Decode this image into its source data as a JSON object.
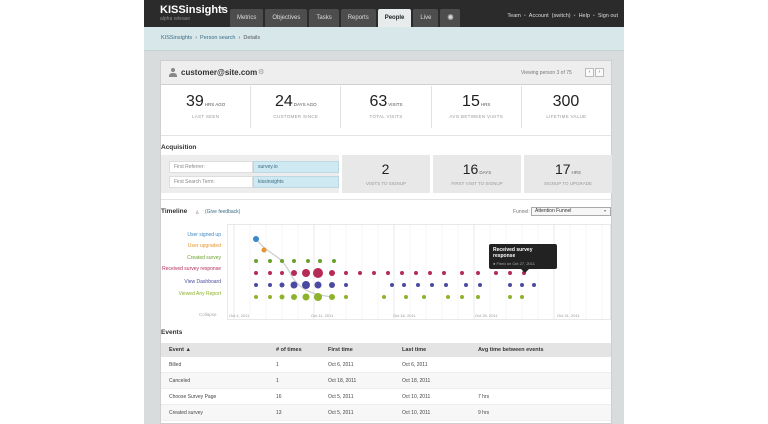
{
  "brand": {
    "name": "KISSinsights",
    "sub": "alpha release"
  },
  "nav": {
    "tabs": [
      "Metrics",
      "Objectives",
      "Tasks",
      "Reports",
      "People",
      "Live"
    ],
    "active": "People",
    "settings_icon": "gear-icon"
  },
  "toplinks": {
    "team": "Team",
    "account": "Account",
    "switch": "(switch)",
    "help": "Help",
    "signout": "Sign out"
  },
  "breadcrumb": {
    "root": "KISSinsights",
    "parent": "Person search",
    "current": "Details"
  },
  "customer": {
    "email": "customer@site.com",
    "viewing": "Viewing person",
    "index": "3",
    "of": "of",
    "total": "75",
    "prev": "‹",
    "next": "›"
  },
  "stats": [
    {
      "value": "39",
      "unit": "HRS AGO",
      "label": "LAST SEEN"
    },
    {
      "value": "24",
      "unit": "DAYS AGO",
      "label": "CUSTOMER SINCE"
    },
    {
      "value": "63",
      "unit": "VISITS",
      "label": "TOTAL VISITS"
    },
    {
      "value": "15",
      "unit": "HRS",
      "label": "AVG BETWEEN VISITS"
    },
    {
      "value": "300",
      "unit": "",
      "label": "LIFETIME VALUE"
    }
  ],
  "acquisition": {
    "title": "Acquisition",
    "first_referrer_label": "First Referrer:",
    "first_referrer_value": "survey.io",
    "first_search_label": "First Search Term:",
    "first_search_value": "kissinsights",
    "metrics": [
      {
        "value": "2",
        "unit": "",
        "label": "VISITS TO SIGNUP"
      },
      {
        "value": "16",
        "unit": "DAYS",
        "label": "FIRST VISIT TO SIGNUP"
      },
      {
        "value": "17",
        "unit": "HRS",
        "label": "SIGNUP TO UPGRADE"
      }
    ]
  },
  "timeline": {
    "title": "Timeline",
    "feedback_link": "(Give feedback)",
    "funnel_label": "Funnel:",
    "funnel_value": "Attention Funnel",
    "collapse": "Collapse",
    "rows": [
      {
        "label": "User signed up",
        "color": "#3a87c8"
      },
      {
        "label": "User upgraded",
        "color": "#e6942e"
      },
      {
        "label": "Created survey",
        "color": "#6aa12c"
      },
      {
        "label": "Received survey response",
        "color": "#b52b56"
      },
      {
        "label": "View Dashboard",
        "color": "#4a4aa0"
      },
      {
        "label": "Viewed Any Report",
        "color": "#8db32a"
      }
    ],
    "dates": [
      "Oct 4, 2011",
      "Oct 11, 2011",
      "Oct 18, 2011",
      "Oct 25, 2011",
      "Oct 31, 2011"
    ],
    "tooltip": {
      "title": "Received survey response",
      "sub": "● Fired on Oct 27, 2011"
    }
  },
  "events": {
    "title": "Events",
    "columns": [
      "Event ▲",
      "# of times",
      "First time",
      "Last time",
      "Avg time between events"
    ],
    "rows": [
      [
        "Billed",
        "1",
        "Oct 6, 2011",
        "Oct 6, 2011",
        ""
      ],
      [
        "Canceled",
        "1",
        "Oct 18, 2011",
        "Oct 18, 2011",
        ""
      ],
      [
        "Choose Survey Page",
        "16",
        "Oct 5, 2011",
        "Oct 10, 2011",
        "7 hrs"
      ],
      [
        "Created survey",
        "13",
        "Oct 5, 2011",
        "Oct 10, 2011",
        "9 hrs"
      ]
    ]
  }
}
